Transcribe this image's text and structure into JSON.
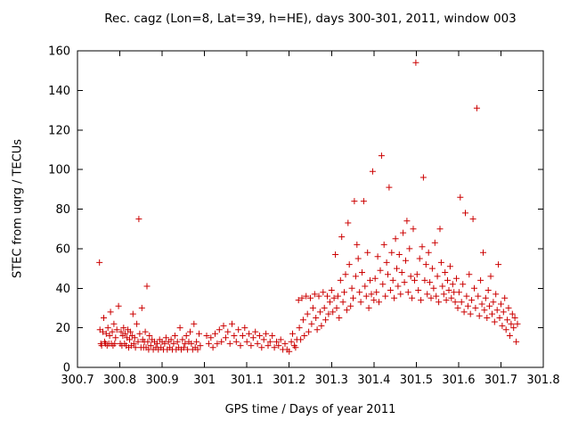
{
  "chart_data": {
    "type": "scatter",
    "title": "Rec. cagz (Lon=8, Lat=39, h=HE), days 300-301, 2011, window 003",
    "xlabel": "GPS time / Days of year 2011",
    "ylabel": "STEC from uqrg / TECUs",
    "xlim": [
      300.7,
      301.8
    ],
    "ylim": [
      0,
      160
    ],
    "xticks": [
      "300.7",
      "300.8",
      "300.9",
      "301",
      "301.1",
      "301.2",
      "301.3",
      "301.4",
      "301.5",
      "301.6",
      "301.7",
      "301.8"
    ],
    "yticks": [
      "0",
      "20",
      "40",
      "60",
      "80",
      "100",
      "120",
      "140",
      "160"
    ],
    "grid": false,
    "legend": "none",
    "marker": "plus",
    "point_color": "#cc0000",
    "axis_color": "#000000",
    "background": "#ffffff",
    "points": [
      [
        300.752,
        53
      ],
      [
        300.753,
        19
      ],
      [
        300.755,
        12
      ],
      [
        300.757,
        11
      ],
      [
        300.76,
        18
      ],
      [
        300.762,
        25
      ],
      [
        300.764,
        13
      ],
      [
        300.766,
        12
      ],
      [
        300.768,
        17
      ],
      [
        300.77,
        11
      ],
      [
        300.772,
        20
      ],
      [
        300.774,
        12
      ],
      [
        300.776,
        16
      ],
      [
        300.778,
        28
      ],
      [
        300.78,
        12
      ],
      [
        300.782,
        18
      ],
      [
        300.784,
        11
      ],
      [
        300.786,
        22
      ],
      [
        300.788,
        12
      ],
      [
        300.79,
        15
      ],
      [
        300.793,
        19
      ],
      [
        300.797,
        31
      ],
      [
        300.801,
        12
      ],
      [
        300.803,
        18
      ],
      [
        300.805,
        11
      ],
      [
        300.807,
        16
      ],
      [
        300.809,
        20
      ],
      [
        300.811,
        12
      ],
      [
        300.813,
        17
      ],
      [
        300.815,
        11
      ],
      [
        300.817,
        15
      ],
      [
        300.819,
        19
      ],
      [
        300.821,
        10
      ],
      [
        300.823,
        14
      ],
      [
        300.825,
        18
      ],
      [
        300.827,
        11
      ],
      [
        300.829,
        16
      ],
      [
        300.831,
        27
      ],
      [
        300.833,
        12
      ],
      [
        300.835,
        15
      ],
      [
        300.837,
        10
      ],
      [
        300.84,
        22
      ],
      [
        300.843,
        13
      ],
      [
        300.845,
        75
      ],
      [
        300.847,
        17
      ],
      [
        300.85,
        10
      ],
      [
        300.852,
        30
      ],
      [
        300.854,
        14
      ],
      [
        300.856,
        10
      ],
      [
        300.858,
        13
      ],
      [
        300.86,
        18
      ],
      [
        300.862,
        10
      ],
      [
        300.864,
        41
      ],
      [
        300.866,
        13
      ],
      [
        300.868,
        9
      ],
      [
        300.87,
        16
      ],
      [
        300.873,
        11
      ],
      [
        300.876,
        14
      ],
      [
        300.879,
        9
      ],
      [
        300.882,
        13
      ],
      [
        300.885,
        10
      ],
      [
        300.888,
        12
      ],
      [
        300.891,
        9
      ],
      [
        300.894,
        14
      ],
      [
        300.897,
        10
      ],
      [
        300.9,
        13
      ],
      [
        300.903,
        9
      ],
      [
        300.906,
        12
      ],
      [
        300.909,
        15
      ],
      [
        300.912,
        9
      ],
      [
        300.915,
        13
      ],
      [
        300.918,
        10
      ],
      [
        300.921,
        14
      ],
      [
        300.924,
        9
      ],
      [
        300.927,
        12
      ],
      [
        300.93,
        16
      ],
      [
        300.933,
        9
      ],
      [
        300.936,
        13
      ],
      [
        300.939,
        10
      ],
      [
        300.942,
        20
      ],
      [
        300.945,
        9
      ],
      [
        300.948,
        14
      ],
      [
        300.951,
        10
      ],
      [
        300.954,
        12
      ],
      [
        300.957,
        16
      ],
      [
        300.96,
        9
      ],
      [
        300.963,
        13
      ],
      [
        300.966,
        18
      ],
      [
        300.969,
        12
      ],
      [
        300.972,
        9
      ],
      [
        300.975,
        22
      ],
      [
        300.978,
        10
      ],
      [
        300.981,
        13
      ],
      [
        300.984,
        9
      ],
      [
        300.987,
        17
      ],
      [
        300.99,
        11
      ],
      [
        301.005,
        16
      ],
      [
        301.01,
        12
      ],
      [
        301.015,
        15
      ],
      [
        301.02,
        10
      ],
      [
        301.025,
        17
      ],
      [
        301.03,
        12
      ],
      [
        301.035,
        19
      ],
      [
        301.04,
        13
      ],
      [
        301.045,
        21
      ],
      [
        301.05,
        15
      ],
      [
        301.055,
        18
      ],
      [
        301.06,
        12
      ],
      [
        301.065,
        22
      ],
      [
        301.07,
        16
      ],
      [
        301.075,
        13
      ],
      [
        301.08,
        19
      ],
      [
        301.085,
        11
      ],
      [
        301.09,
        16
      ],
      [
        301.095,
        20
      ],
      [
        301.1,
        13
      ],
      [
        301.105,
        17
      ],
      [
        301.11,
        11
      ],
      [
        301.115,
        15
      ],
      [
        301.12,
        18
      ],
      [
        301.125,
        12
      ],
      [
        301.13,
        16
      ],
      [
        301.135,
        10
      ],
      [
        301.14,
        14
      ],
      [
        301.145,
        17
      ],
      [
        301.15,
        11
      ],
      [
        301.155,
        13
      ],
      [
        301.16,
        16
      ],
      [
        301.165,
        10
      ],
      [
        301.17,
        13
      ],
      [
        301.175,
        11
      ],
      [
        301.18,
        14
      ],
      [
        301.185,
        9
      ],
      [
        301.19,
        12
      ],
      [
        301.195,
        9
      ],
      [
        301.2,
        8
      ],
      [
        301.205,
        13
      ],
      [
        301.208,
        17
      ],
      [
        301.212,
        11
      ],
      [
        301.215,
        10
      ],
      [
        301.218,
        14
      ],
      [
        301.222,
        34
      ],
      [
        301.224,
        20
      ],
      [
        301.227,
        14
      ],
      [
        301.23,
        35
      ],
      [
        301.233,
        24
      ],
      [
        301.236,
        16
      ],
      [
        301.24,
        36
      ],
      [
        301.243,
        27
      ],
      [
        301.246,
        18
      ],
      [
        301.25,
        35
      ],
      [
        301.253,
        22
      ],
      [
        301.256,
        30
      ],
      [
        301.26,
        37
      ],
      [
        301.263,
        25
      ],
      [
        301.266,
        19
      ],
      [
        301.27,
        36
      ],
      [
        301.273,
        28
      ],
      [
        301.276,
        21
      ],
      [
        301.28,
        38
      ],
      [
        301.283,
        30
      ],
      [
        301.286,
        24
      ],
      [
        301.29,
        36
      ],
      [
        301.293,
        27
      ],
      [
        301.296,
        33
      ],
      [
        301.3,
        39
      ],
      [
        301.303,
        28
      ],
      [
        301.306,
        35
      ],
      [
        301.309,
        57
      ],
      [
        301.312,
        30
      ],
      [
        301.315,
        36
      ],
      [
        301.318,
        25
      ],
      [
        301.321,
        44
      ],
      [
        301.324,
        66
      ],
      [
        301.327,
        33
      ],
      [
        301.33,
        38
      ],
      [
        301.333,
        47
      ],
      [
        301.336,
        29
      ],
      [
        301.339,
        73
      ],
      [
        301.342,
        52
      ],
      [
        301.345,
        31
      ],
      [
        301.348,
        40
      ],
      [
        301.351,
        35
      ],
      [
        301.354,
        84
      ],
      [
        301.357,
        46
      ],
      [
        301.36,
        62
      ],
      [
        301.363,
        55
      ],
      [
        301.366,
        38
      ],
      [
        301.369,
        33
      ],
      [
        301.372,
        48
      ],
      [
        301.376,
        84
      ],
      [
        301.379,
        41
      ],
      [
        301.382,
        36
      ],
      [
        301.385,
        58
      ],
      [
        301.388,
        30
      ],
      [
        301.391,
        44
      ],
      [
        301.394,
        37
      ],
      [
        301.397,
        99
      ],
      [
        301.4,
        34
      ],
      [
        301.403,
        45
      ],
      [
        301.406,
        38
      ],
      [
        301.409,
        56
      ],
      [
        301.412,
        33
      ],
      [
        301.415,
        49
      ],
      [
        301.418,
        107
      ],
      [
        301.421,
        42
      ],
      [
        301.424,
        62
      ],
      [
        301.427,
        36
      ],
      [
        301.43,
        53
      ],
      [
        301.433,
        47
      ],
      [
        301.436,
        91
      ],
      [
        301.439,
        39
      ],
      [
        301.442,
        58
      ],
      [
        301.445,
        44
      ],
      [
        301.448,
        35
      ],
      [
        301.451,
        65
      ],
      [
        301.454,
        50
      ],
      [
        301.457,
        41
      ],
      [
        301.46,
        57
      ],
      [
        301.463,
        37
      ],
      [
        301.466,
        48
      ],
      [
        301.469,
        68
      ],
      [
        301.472,
        43
      ],
      [
        301.475,
        54
      ],
      [
        301.478,
        74
      ],
      [
        301.481,
        38
      ],
      [
        301.484,
        60
      ],
      [
        301.487,
        46
      ],
      [
        301.49,
        35
      ],
      [
        301.493,
        70
      ],
      [
        301.496,
        44
      ],
      [
        301.499,
        154
      ],
      [
        301.502,
        47
      ],
      [
        301.505,
        39
      ],
      [
        301.508,
        55
      ],
      [
        301.511,
        34
      ],
      [
        301.514,
        61
      ],
      [
        301.517,
        96
      ],
      [
        301.52,
        44
      ],
      [
        301.523,
        52
      ],
      [
        301.526,
        37
      ],
      [
        301.529,
        58
      ],
      [
        301.532,
        43
      ],
      [
        301.535,
        35
      ],
      [
        301.538,
        50
      ],
      [
        301.541,
        40
      ],
      [
        301.544,
        63
      ],
      [
        301.547,
        36
      ],
      [
        301.55,
        46
      ],
      [
        301.553,
        33
      ],
      [
        301.556,
        70
      ],
      [
        301.559,
        53
      ],
      [
        301.562,
        41
      ],
      [
        301.565,
        37
      ],
      [
        301.568,
        48
      ],
      [
        301.571,
        34
      ],
      [
        301.574,
        44
      ],
      [
        301.577,
        39
      ],
      [
        301.58,
        51
      ],
      [
        301.583,
        35
      ],
      [
        301.586,
        42
      ],
      [
        301.589,
        38
      ],
      [
        301.592,
        33
      ],
      [
        301.595,
        45
      ],
      [
        301.598,
        30
      ],
      [
        301.601,
        38
      ],
      [
        301.604,
        86
      ],
      [
        301.607,
        33
      ],
      [
        301.61,
        42
      ],
      [
        301.613,
        28
      ],
      [
        301.616,
        78
      ],
      [
        301.619,
        36
      ],
      [
        301.622,
        31
      ],
      [
        301.625,
        47
      ],
      [
        301.628,
        27
      ],
      [
        301.631,
        34
      ],
      [
        301.634,
        75
      ],
      [
        301.637,
        40
      ],
      [
        301.64,
        30
      ],
      [
        301.643,
        131
      ],
      [
        301.646,
        36
      ],
      [
        301.649,
        26
      ],
      [
        301.652,
        44
      ],
      [
        301.655,
        32
      ],
      [
        301.658,
        58
      ],
      [
        301.661,
        29
      ],
      [
        301.664,
        35
      ],
      [
        301.667,
        25
      ],
      [
        301.67,
        39
      ],
      [
        301.673,
        31
      ],
      [
        301.676,
        46
      ],
      [
        301.679,
        27
      ],
      [
        301.682,
        33
      ],
      [
        301.685,
        23
      ],
      [
        301.688,
        37
      ],
      [
        301.691,
        29
      ],
      [
        301.694,
        52
      ],
      [
        301.697,
        25
      ],
      [
        301.7,
        32
      ],
      [
        301.703,
        21
      ],
      [
        301.706,
        28
      ],
      [
        301.709,
        35
      ],
      [
        301.712,
        19
      ],
      [
        301.715,
        24
      ],
      [
        301.718,
        30
      ],
      [
        301.721,
        16
      ],
      [
        301.724,
        22
      ],
      [
        301.727,
        27
      ],
      [
        301.73,
        20
      ],
      [
        301.733,
        25
      ],
      [
        301.736,
        13
      ],
      [
        301.739,
        22
      ]
    ]
  }
}
